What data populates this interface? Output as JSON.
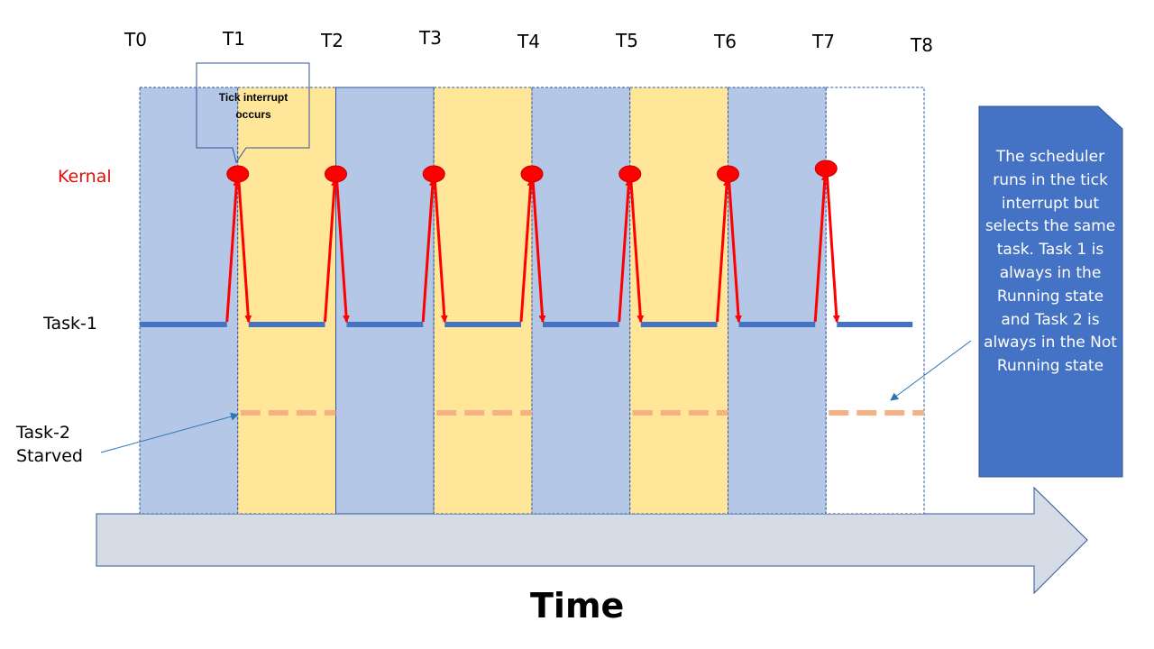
{
  "ticks": [
    "T0",
    "T1",
    "T2",
    "T3",
    "T4",
    "T5",
    "T6",
    "T7",
    "T8"
  ],
  "rows": {
    "kernel": "Kernal",
    "task1": "Task-1",
    "task2_line1": "Task-2",
    "task2_line2": "Starved"
  },
  "callout": "Tick interrupt occurs",
  "note": "The scheduler runs in the tick interrupt but selects the same task. Task 1 is always in the Running state and Task 2 is always in the Not Running state",
  "time_axis_label": "Time",
  "slots": [
    "blue",
    "yellow",
    "blue",
    "yellow",
    "blue",
    "yellow",
    "blue",
    "white"
  ],
  "colors": {
    "slot_blue": "#b4c7e7",
    "slot_yellow": "#ffe699",
    "task1_line": "#4472c4",
    "task2_line": "#f4b183",
    "kernel_marker": "#ff0000",
    "arrow": "#ff0000",
    "note_fill": "#4472c4",
    "time_arrow_fill": "#d6dce5",
    "time_arrow_stroke": "#2f5597"
  }
}
